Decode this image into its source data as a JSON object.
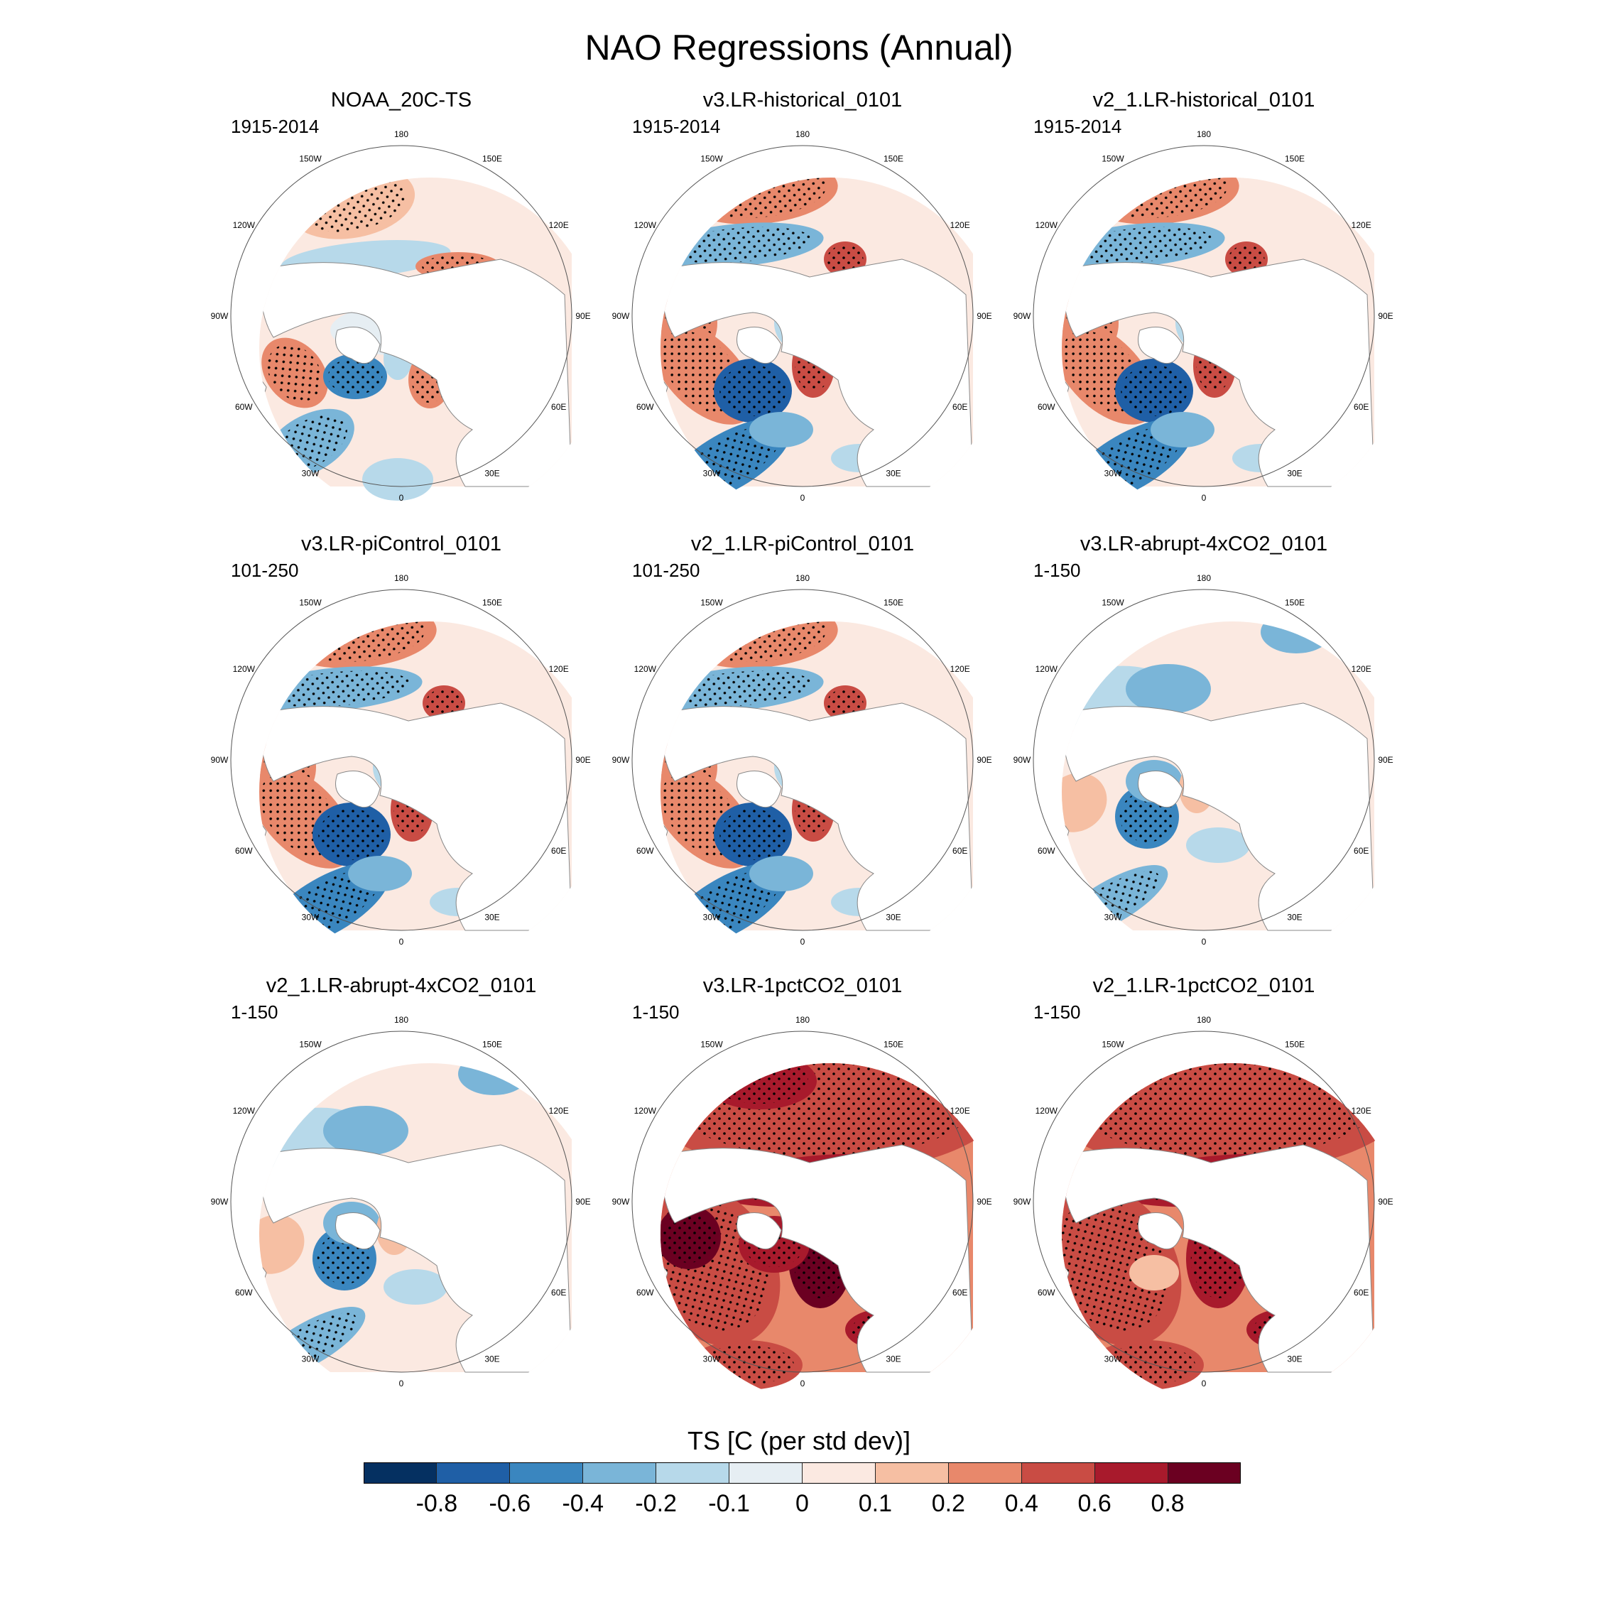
{
  "title": "NAO Regressions (Annual)",
  "lon_labels": [
    "180",
    "150E",
    "120E",
    "90E",
    "60E",
    "30E",
    "0",
    "30W",
    "60W",
    "90W",
    "120W",
    "150W"
  ],
  "panels": [
    {
      "name": "NOAA_20C-TS",
      "period": "1915-2014",
      "pattern": "obs"
    },
    {
      "name": "v3.LR-historical_0101",
      "period": "1915-2014",
      "pattern": "model"
    },
    {
      "name": "v2_1.LR-historical_0101",
      "period": "1915-2014",
      "pattern": "model"
    },
    {
      "name": "v3.LR-piControl_0101",
      "period": "101-250",
      "pattern": "model"
    },
    {
      "name": "v2_1.LR-piControl_0101",
      "period": "101-250",
      "pattern": "model"
    },
    {
      "name": "v3.LR-abrupt-4xCO2_0101",
      "period": "1-150",
      "pattern": "weak"
    },
    {
      "name": "v2_1.LR-abrupt-4xCO2_0101",
      "period": "1-150",
      "pattern": "weak"
    },
    {
      "name": "v3.LR-1pctCO2_0101",
      "period": "1-150",
      "pattern": "warm"
    },
    {
      "name": "v2_1.LR-1pctCO2_0101",
      "period": "1-150",
      "pattern": "warm2"
    }
  ],
  "colorbar": {
    "title": "TS [C (per std dev)]",
    "colors": [
      "#053061",
      "#1f5fa6",
      "#3a86bf",
      "#7ab5d8",
      "#b7d9ea",
      "#e6eef3",
      "#fbe9e1",
      "#f6bfa3",
      "#e8886b",
      "#c94c44",
      "#a81a2c",
      "#6b0021"
    ],
    "ticks": [
      "-0.8",
      "-0.6",
      "-0.4",
      "-0.2",
      "-0.1",
      "0",
      "0.1",
      "0.2",
      "0.4",
      "0.6",
      "0.8"
    ]
  }
}
